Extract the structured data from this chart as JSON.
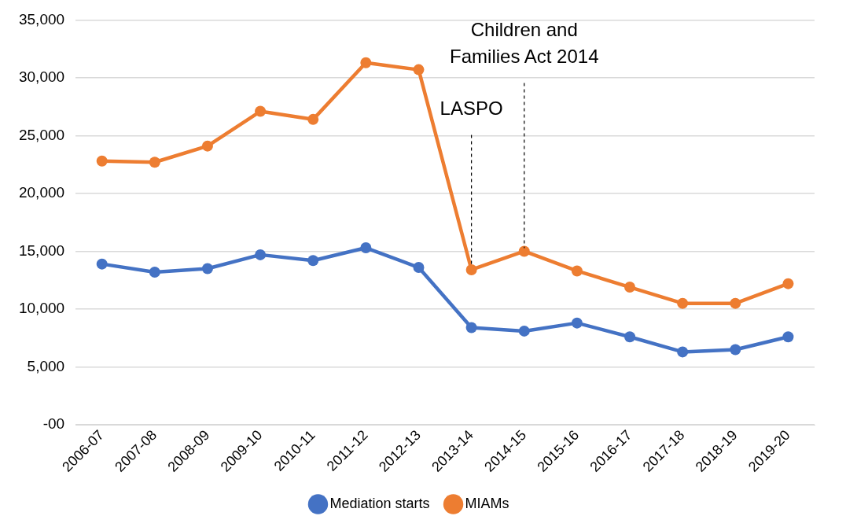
{
  "chart_data": {
    "type": "line",
    "categories": [
      "2006-07",
      "2007-08",
      "2008-09",
      "2009-10",
      "2010-11",
      "2011-12",
      "2012-13",
      "2013-14",
      "2014-15",
      "2015-16",
      "2016-17",
      "2017-18",
      "2018-19",
      "2019-20"
    ],
    "series": [
      {
        "name": "Mediation starts",
        "color": "#4472c4",
        "values": [
          13900,
          13200,
          13500,
          14700,
          14200,
          15300,
          13600,
          8400,
          8100,
          8800,
          7600,
          6300,
          6500,
          7600
        ]
      },
      {
        "name": "MIAMs",
        "color": "#ed7d31",
        "values": [
          22800,
          22700,
          24100,
          27100,
          26400,
          31300,
          30700,
          13400,
          15000,
          13300,
          11900,
          10500,
          10500,
          12200
        ]
      }
    ],
    "ylim": [
      0,
      35000
    ],
    "yticks": [
      {
        "value": 0,
        "label": "-00"
      },
      {
        "value": 5000,
        "label": "5,000"
      },
      {
        "value": 10000,
        "label": "10,000"
      },
      {
        "value": 15000,
        "label": "15,000"
      },
      {
        "value": 20000,
        "label": "20,000"
      },
      {
        "value": 25000,
        "label": "25,000"
      },
      {
        "value": 30000,
        "label": "30,000"
      },
      {
        "value": 35000,
        "label": "35,000"
      }
    ],
    "ref_lines": [
      {
        "axis": "x",
        "value": "2013-14",
        "label": "LASPO",
        "color": "#000000",
        "line_style": "dashed"
      },
      {
        "axis": "x",
        "value": "2014-15",
        "label": "Children and Families Act 2014",
        "color": "#000000",
        "line_style": "dashed"
      }
    ],
    "grid": "y",
    "legend": "bottom",
    "marker": "circle",
    "line_style": "solid"
  }
}
